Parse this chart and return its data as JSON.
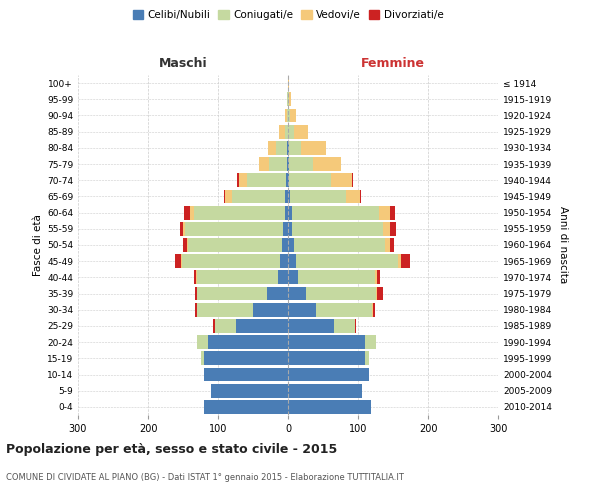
{
  "age_groups": [
    "0-4",
    "5-9",
    "10-14",
    "15-19",
    "20-24",
    "25-29",
    "30-34",
    "35-39",
    "40-44",
    "45-49",
    "50-54",
    "55-59",
    "60-64",
    "65-69",
    "70-74",
    "75-79",
    "80-84",
    "85-89",
    "90-94",
    "95-99",
    "100+"
  ],
  "birth_years": [
    "2010-2014",
    "2005-2009",
    "2000-2004",
    "1995-1999",
    "1990-1994",
    "1985-1989",
    "1980-1984",
    "1975-1979",
    "1970-1974",
    "1965-1969",
    "1960-1964",
    "1955-1959",
    "1950-1954",
    "1945-1949",
    "1940-1944",
    "1935-1939",
    "1930-1934",
    "1925-1929",
    "1920-1924",
    "1915-1919",
    "≤ 1914"
  ],
  "colors": {
    "celibi": "#4a7db5",
    "coniugati": "#c5d9a0",
    "vedovi": "#f5c97a",
    "divorziati": "#cc2222"
  },
  "male": {
    "celibi": [
      120,
      110,
      120,
      120,
      115,
      75,
      50,
      30,
      15,
      12,
      8,
      7,
      5,
      5,
      3,
      2,
      2,
      0,
      0,
      0,
      0
    ],
    "coniugati": [
      0,
      0,
      0,
      5,
      15,
      30,
      80,
      100,
      115,
      140,
      135,
      140,
      130,
      75,
      55,
      25,
      15,
      5,
      2,
      1,
      0
    ],
    "vedovi": [
      0,
      0,
      0,
      0,
      0,
      0,
      0,
      0,
      1,
      1,
      2,
      3,
      5,
      10,
      12,
      15,
      12,
      8,
      3,
      1,
      0
    ],
    "divorziati": [
      0,
      0,
      0,
      0,
      0,
      2,
      3,
      3,
      3,
      8,
      5,
      5,
      8,
      2,
      3,
      0,
      0,
      0,
      0,
      0,
      0
    ]
  },
  "female": {
    "celibi": [
      118,
      105,
      115,
      110,
      110,
      65,
      40,
      25,
      14,
      12,
      8,
      6,
      5,
      3,
      2,
      1,
      1,
      0,
      0,
      0,
      0
    ],
    "coniugati": [
      0,
      0,
      0,
      5,
      15,
      30,
      80,
      100,
      110,
      145,
      130,
      130,
      125,
      80,
      60,
      35,
      18,
      8,
      3,
      1,
      0
    ],
    "vedovi": [
      0,
      0,
      0,
      0,
      0,
      0,
      1,
      2,
      3,
      5,
      8,
      10,
      15,
      20,
      30,
      40,
      35,
      20,
      8,
      3,
      1
    ],
    "divorziati": [
      0,
      0,
      0,
      0,
      0,
      2,
      3,
      8,
      5,
      12,
      5,
      8,
      8,
      1,
      1,
      0,
      0,
      0,
      0,
      0,
      0
    ]
  },
  "title": "Popolazione per età, sesso e stato civile - 2015",
  "subtitle": "COMUNE DI CIVIDATE AL PIANO (BG) - Dati ISTAT 1° gennaio 2015 - Elaborazione TUTTITALIA.IT",
  "xlabel_left": "Maschi",
  "xlabel_right": "Femmine",
  "ylabel_left": "Fasce di età",
  "ylabel_right": "Anni di nascita",
  "xlim": 300,
  "legend_labels": [
    "Celibi/Nubili",
    "Coniugati/e",
    "Vedovi/e",
    "Divorziati/e"
  ],
  "background_color": "#ffffff",
  "grid_color": "#cccccc"
}
